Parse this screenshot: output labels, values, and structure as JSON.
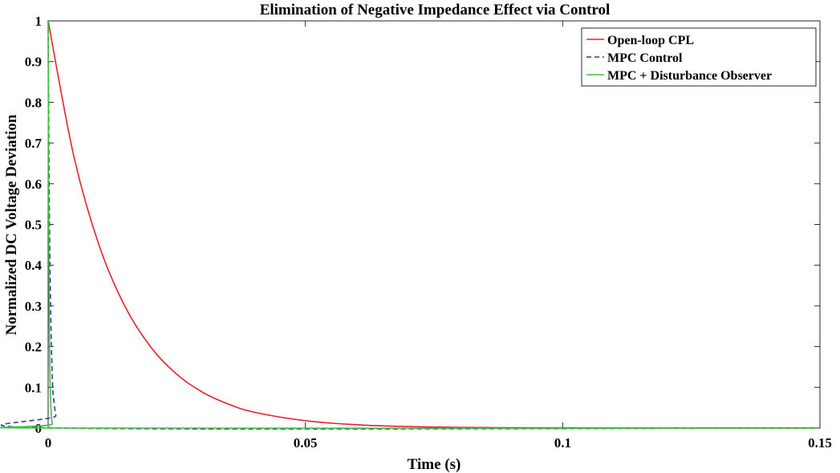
{
  "chart_data": {
    "type": "line",
    "title": "Elimination of Negative Impedance Effect via Control",
    "xlabel": "Time (s)",
    "ylabel": "Normalized DC Voltage Deviation",
    "xlim": [
      0,
      0.15
    ],
    "ylim": [
      0,
      1
    ],
    "xticks": [
      0,
      0.05,
      0.1,
      0.15
    ],
    "xtick_labels": [
      "0",
      "0.05",
      "0.1",
      "0.15"
    ],
    "yticks": [
      0,
      0.1,
      0.2,
      0.3,
      0.4,
      0.5,
      0.6,
      0.7,
      0.8,
      0.9,
      1
    ],
    "ytick_labels": [
      "0",
      "0.1",
      "0.2",
      "0.3",
      "0.4",
      "0.5",
      "0.6",
      "0.7",
      "0.8",
      "0.9",
      "1"
    ],
    "grid": false,
    "legend_position": "top-right",
    "series": [
      {
        "name": "Open-loop CPL",
        "color": "#e8222a",
        "style": "solid",
        "x": [
          0,
          0.005,
          0.01,
          0.015,
          0.02,
          0.025,
          0.03,
          0.035,
          0.04,
          0.05,
          0.06,
          0.07,
          0.08,
          0.09,
          0.1,
          0.12,
          0.15
        ],
        "y": [
          1.0,
          0.667,
          0.445,
          0.297,
          0.198,
          0.132,
          0.088,
          0.059,
          0.039,
          0.018,
          0.008,
          0.0035,
          0.0016,
          0.0007,
          0.0003,
          0.0001,
          0.0
        ]
      },
      {
        "name": "MPC Control",
        "color": "#2b3fa0",
        "style": "dashed",
        "x": [
          0,
          0.0002,
          0.0004,
          0.0006,
          0.0008,
          0.001,
          0.0015,
          0.002,
          0.15
        ],
        "y": [
          1.0,
          0.6,
          0.36,
          0.22,
          0.13,
          0.08,
          0.03,
          0.0,
          0.0
        ]
      },
      {
        "name": "MPC + Disturbance Observer",
        "color": "#3fbf3f",
        "style": "solid",
        "x": [
          0,
          0.0001,
          0.0002,
          0.0003,
          0.0005,
          0.0008,
          0.0012,
          0.15
        ],
        "y": [
          1.0,
          0.55,
          0.3,
          0.17,
          0.06,
          0.01,
          0.0,
          0.0
        ]
      }
    ]
  }
}
